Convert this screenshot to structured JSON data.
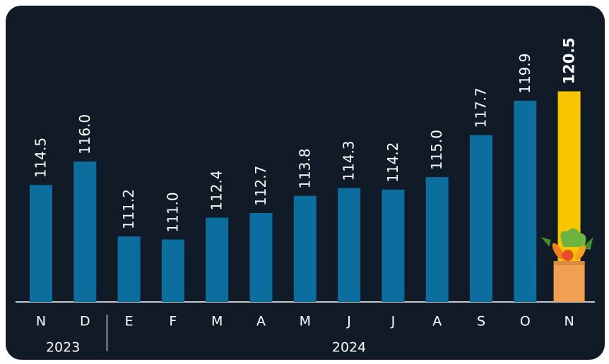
{
  "chart_data": {
    "type": "bar",
    "categories": [
      "N",
      "D",
      "E",
      "F",
      "M",
      "A",
      "M",
      "J",
      "J",
      "A",
      "S",
      "O",
      "N"
    ],
    "years": [
      "2023",
      "2023",
      "2024",
      "2024",
      "2024",
      "2024",
      "2024",
      "2024",
      "2024",
      "2024",
      "2024",
      "2024",
      "2024"
    ],
    "values": [
      114.5,
      116.0,
      111.2,
      111.0,
      112.4,
      112.7,
      113.8,
      114.3,
      114.2,
      115.0,
      117.7,
      119.9,
      120.5
    ],
    "value_labels": [
      "114.5",
      "116.0",
      "111.2",
      "111.0",
      "112.4",
      "112.7",
      "113.8",
      "114.3",
      "114.2",
      "115.0",
      "117.7",
      "119.9",
      "120.5"
    ],
    "colors": [
      "#0b6e9e",
      "#0b6e9e",
      "#0b6e9e",
      "#0b6e9e",
      "#0b6e9e",
      "#0b6e9e",
      "#0b6e9e",
      "#0b6e9e",
      "#0b6e9e",
      "#0b6e9e",
      "#0b6e9e",
      "#0b6e9e",
      "#f7c600"
    ],
    "ylim": [
      107,
      125
    ]
  }
}
